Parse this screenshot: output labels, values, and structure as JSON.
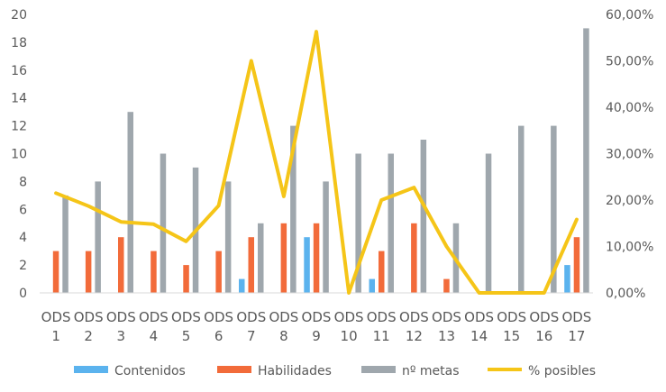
{
  "chart_data": {
    "type": "bar",
    "categories": [
      [
        "ODS",
        "1"
      ],
      [
        "ODS",
        "2"
      ],
      [
        "ODS",
        "3"
      ],
      [
        "ODS",
        "4"
      ],
      [
        "ODS",
        "5"
      ],
      [
        "ODS",
        "6"
      ],
      [
        "ODS",
        "7"
      ],
      [
        "ODS",
        "8"
      ],
      [
        "ODS",
        "9"
      ],
      [
        "ODS",
        "10"
      ],
      [
        "ODS",
        "11"
      ],
      [
        "ODS",
        "12"
      ],
      [
        "ODS",
        "13"
      ],
      [
        "ODS",
        "14"
      ],
      [
        "ODS",
        "15"
      ],
      [
        "ODS",
        "16"
      ],
      [
        "ODS",
        "17"
      ]
    ],
    "series": [
      {
        "name": "Contenidos",
        "type": "bar",
        "axis": "left",
        "color": "#5bb3ee",
        "values": [
          0,
          0,
          0,
          0,
          0,
          0,
          1,
          0,
          4,
          0,
          1,
          0,
          0,
          0,
          0,
          0,
          2
        ]
      },
      {
        "name": "Habilidades",
        "type": "bar",
        "axis": "left",
        "color": "#f26b3a",
        "values": [
          3,
          3,
          4,
          3,
          2,
          3,
          4,
          5,
          5,
          0,
          3,
          5,
          1,
          0,
          0,
          0,
          4
        ]
      },
      {
        "name": "nº metas",
        "type": "bar",
        "axis": "left",
        "color": "#9fa7ad",
        "values": [
          7,
          8,
          13,
          10,
          9,
          8,
          5,
          12,
          8,
          10,
          10,
          11,
          5,
          10,
          12,
          12,
          19
        ]
      },
      {
        "name": "% posibles",
        "type": "line",
        "axis": "right",
        "color": "#f5c518",
        "values": [
          21.5,
          18.7,
          15.3,
          14.8,
          11.1,
          18.8,
          50.0,
          20.8,
          56.3,
          0.0,
          20.0,
          22.7,
          10.0,
          0.0,
          0.0,
          0.0,
          15.8
        ]
      }
    ],
    "y_left": {
      "min": 0,
      "max": 20,
      "ticks": [
        "0",
        "2",
        "4",
        "6",
        "8",
        "10",
        "12",
        "14",
        "16",
        "18",
        "20"
      ]
    },
    "y_right": {
      "min": 0,
      "max": 60,
      "ticks": [
        "0,00%",
        "10,00%",
        "20,00%",
        "30,00%",
        "40,00%",
        "50,00%",
        "60,00%"
      ]
    },
    "grid": false,
    "legend_position": "bottom"
  }
}
